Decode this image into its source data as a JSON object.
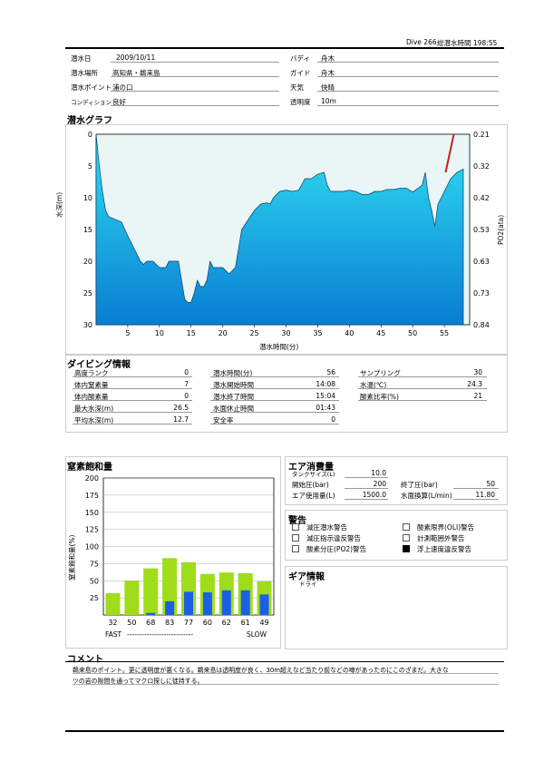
{
  "header": {
    "dive_label": "Dive 266",
    "total_label": "総潜水時間 198:55"
  },
  "info": {
    "date_label": "潜水日",
    "date": "2009/10/11",
    "buddy_label": "バディ",
    "buddy": "舟木",
    "place_label": "潜水場所",
    "place": "高知県・鵜来島",
    "guide_label": "ガイド",
    "guide": "舟木",
    "point_label": "潜水ポイント",
    "point": "浦の口",
    "weather_label": "天気",
    "weather": "快晴",
    "condition_label": "コンディション",
    "condition": "良好",
    "visibility_label": "透明度",
    "visibility": "10m"
  },
  "graph": {
    "title": "潜水グラフ",
    "ylabel": "水深(m)",
    "ylabel_right": "PO2(ata)",
    "xlabel": "潜水時間(分)",
    "left_ticks": [
      "0",
      "5",
      "10",
      "15",
      "20",
      "25",
      "30"
    ],
    "right_ticks": [
      "0.21",
      "0.32",
      "0.42",
      "0.53",
      "0.63",
      "0.73",
      "0.84"
    ],
    "x_ticks": [
      "5",
      "10",
      "15",
      "20",
      "25",
      "30",
      "35",
      "40",
      "45",
      "50",
      "55"
    ]
  },
  "chart_data": [
    {
      "type": "area",
      "title": "潜水グラフ",
      "xlabel": "潜水時間(分)",
      "ylabel": "水深(m)",
      "ylabel_right": "PO2(ata)",
      "xlim": [
        0,
        59
      ],
      "ylim": [
        30,
        0
      ],
      "ylim_right": [
        0.21,
        0.84
      ],
      "series": [
        {
          "x": [
            0,
            0.5,
            1,
            1.5,
            2,
            3,
            4,
            5,
            6,
            7,
            7.5,
            8,
            9,
            10,
            11,
            11.5,
            12,
            13,
            13.5,
            14,
            14.5,
            15,
            15.5,
            16,
            16.5,
            17,
            17.5,
            18,
            18.5,
            19,
            20,
            21,
            22,
            22.5,
            23,
            24,
            25,
            26,
            27,
            27.5,
            28,
            29,
            30,
            31,
            32,
            33,
            34,
            35,
            36,
            36.5,
            37,
            38,
            39,
            40,
            41,
            42,
            43,
            44,
            45,
            46,
            47,
            48,
            49,
            50,
            51,
            51.5,
            52,
            52.5,
            53,
            53.5,
            54,
            55,
            55.5,
            56,
            57,
            58
          ],
          "y": [
            0,
            5,
            9,
            12,
            13,
            13.4,
            13.8,
            16,
            18,
            20,
            20.5,
            20,
            20,
            21,
            21,
            20,
            20,
            20,
            23,
            26,
            26.5,
            26.5,
            25,
            23,
            24,
            24,
            23,
            20,
            21,
            21,
            21,
            22,
            21,
            18,
            15,
            13.5,
            12,
            11,
            10.8,
            11,
            10,
            9,
            8.8,
            9,
            8.8,
            7,
            7,
            6.3,
            6,
            8,
            9,
            9,
            9,
            8.8,
            9,
            9.5,
            9.5,
            9,
            9,
            8.7,
            8.7,
            8.5,
            8.5,
            9.1,
            8.4,
            8,
            6,
            10,
            12,
            14.5,
            11,
            9,
            8,
            7,
            6,
            5.5
          ]
        },
        {
          "name": "PO2",
          "x": [
            55.2,
            56.5
          ],
          "y": [
            6,
            0
          ]
        }
      ]
    },
    {
      "type": "bar",
      "title": "窒素飽和量",
      "ylabel": "窒素飽和量(%)",
      "ylim": [
        0,
        200
      ],
      "categories": [
        "32",
        "50",
        "68",
        "83",
        "77",
        "60",
        "62",
        "61",
        "49"
      ],
      "series": [
        {
          "values": [
            32,
            50,
            68,
            83,
            77,
            60,
            62,
            61,
            49
          ]
        },
        {
          "values": [
            0,
            0,
            3,
            20,
            34,
            33,
            36,
            36,
            30
          ]
        }
      ]
    }
  ],
  "diving_info": {
    "title": "ダイビング情報",
    "rows": [
      {
        "l1": "高度ランク",
        "v1": "0",
        "l2": "潜水時間(分)",
        "v2": "56",
        "l3": "サンプリング",
        "v3": "30"
      },
      {
        "l1": "体内窒素量",
        "v1": "7",
        "l2": "潜水開始時間",
        "v2": "14:08",
        "l3": "水温(℃)",
        "v3": "24.3"
      },
      {
        "l1": "体内酸素量",
        "v1": "0",
        "l2": "潜水終了時間",
        "v2": "15:04",
        "l3": "酸素比率(%)",
        "v3": "21"
      },
      {
        "l1": "最大水深(m)",
        "v1": "26.5",
        "l2": "水面休止時間",
        "v2": "01:43",
        "l3": "",
        "v3": ""
      },
      {
        "l1": "平均水深(m)",
        "v1": "12.7",
        "l2": "安全率",
        "v2": "0",
        "l3": "",
        "v3": ""
      }
    ]
  },
  "nitrogen": {
    "title": "窒素飽和量",
    "ylabel": "窒素飽和量(%)",
    "y_ticks": [
      "200",
      "175",
      "150",
      "125",
      "100",
      "75",
      "50",
      "25"
    ],
    "fast_label": "FAST",
    "slow_label": "SLOW",
    "dashes": "---------------------------"
  },
  "air": {
    "title": "エア消費量",
    "tank_label": "タンクサイズ(L)",
    "tank": "10.0",
    "start_label": "開始圧(bar)",
    "start": "200",
    "end_label": "終了圧(bar)",
    "end": "50",
    "used_label": "エア使用量(L)",
    "used": "1500.0",
    "surface_label": "水面換算(L/min)",
    "surface": "11.80"
  },
  "warnings": {
    "title": "警告",
    "items": [
      {
        "label": "減圧潜水警告",
        "checked": false
      },
      {
        "label": "酸素限界(OLI)警告",
        "checked": false
      },
      {
        "label": "減圧指示違反警告",
        "checked": false
      },
      {
        "label": "計測範囲外警告",
        "checked": false
      },
      {
        "label": "酸素分圧(PO2)警告",
        "checked": false
      },
      {
        "label": "浮上速度違反警告",
        "checked": true
      }
    ]
  },
  "gear": {
    "title": "ギア情報",
    "text": "ドライ"
  },
  "comment": {
    "title": "コメント",
    "line1": "鵜来島のポイント。更に透明度が悪くなる。鵜来島は透明度が良く、30m超えなど当たり前などの噂があったのにこのざまだ。大きな",
    "line2": "ツの岩の隙間を通ってマクロ探しに徒持する。"
  },
  "colors": {
    "area_top": "#29d9f0",
    "area_bottom": "#0a7fd0",
    "bar_green": "#9fdc1a",
    "bar_blue": "#1a5fe6",
    "po2_line": "#c81e1e"
  }
}
